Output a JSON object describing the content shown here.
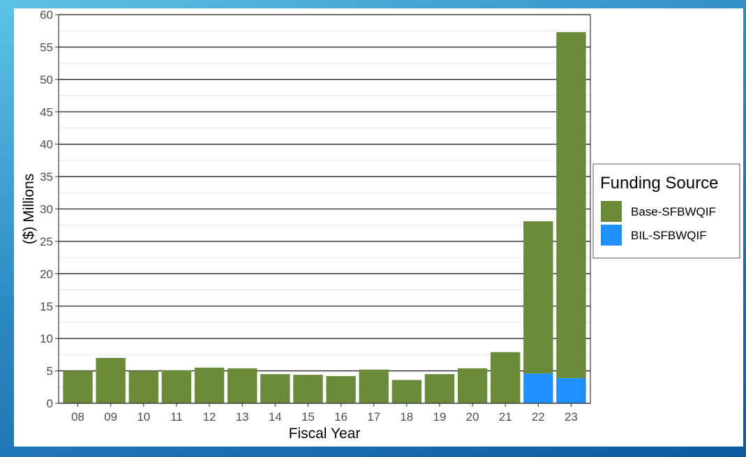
{
  "colors": {
    "base": "#6b8a3a",
    "bil": "#1e90ff",
    "frame": "#333333",
    "major_grid": "#222222",
    "minor_grid": "#e6e6e6"
  },
  "chart_data": {
    "type": "bar",
    "stacked": true,
    "title": "",
    "xlabel": "Fiscal Year",
    "ylabel": "($) Millions",
    "ylim": [
      0,
      60
    ],
    "yticks": [
      "0",
      "5",
      "10",
      "15",
      "20",
      "25",
      "30",
      "35",
      "40",
      "45",
      "50",
      "55",
      "60"
    ],
    "categories": [
      "08",
      "09",
      "10",
      "11",
      "12",
      "13",
      "14",
      "15",
      "16",
      "17",
      "18",
      "19",
      "20",
      "21",
      "22",
      "23"
    ],
    "series": [
      {
        "name": "BIL-SFBWQIF",
        "values": [
          0,
          0,
          0,
          0,
          0,
          0,
          0,
          0,
          0,
          0,
          0,
          0,
          0,
          0,
          4.6,
          3.9
        ]
      },
      {
        "name": "Base-SFBWQIF",
        "values": [
          5.0,
          7.0,
          5.0,
          5.1,
          5.5,
          5.4,
          4.5,
          4.4,
          4.2,
          5.2,
          3.6,
          4.5,
          5.4,
          7.9,
          23.5,
          53.4
        ]
      }
    ],
    "grid": true,
    "legend": {
      "title": "Funding Source",
      "placement": "right",
      "entries": [
        "Base-SFBWQIF",
        "BIL-SFBWQIF"
      ]
    }
  }
}
